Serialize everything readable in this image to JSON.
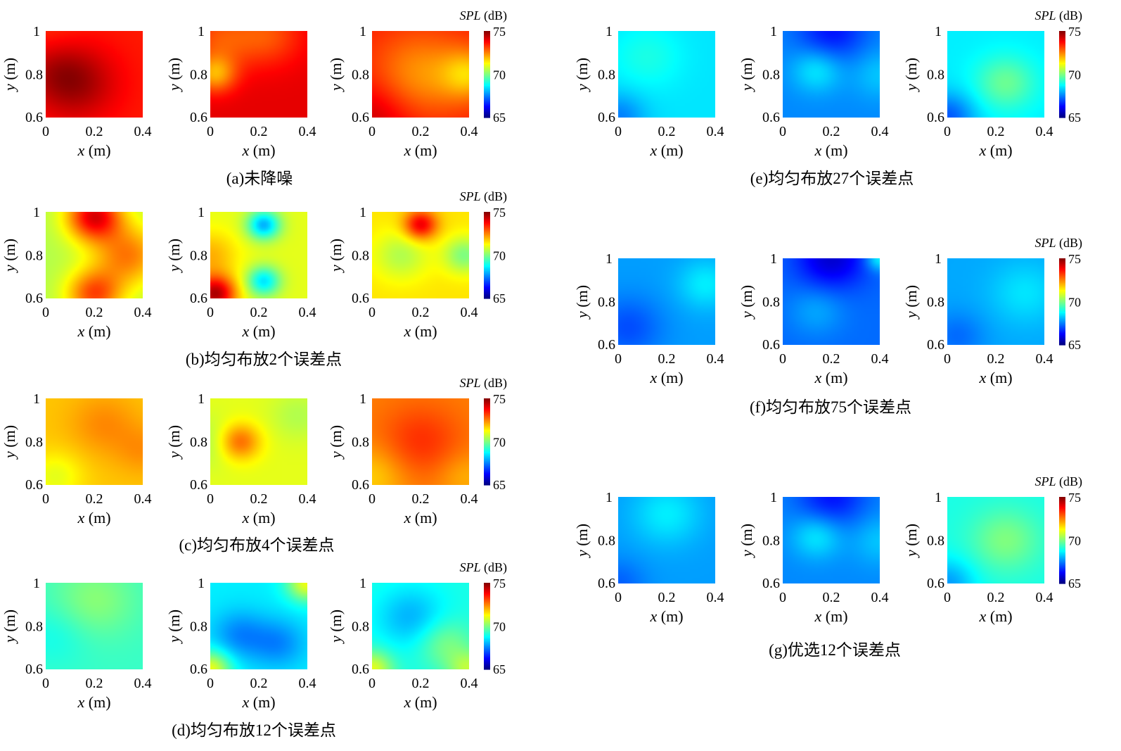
{
  "chart_data": {
    "type": "heatmap",
    "colorscale": "jet",
    "color_range": [
      65,
      75
    ],
    "colorbar": {
      "label_italic": "SPL",
      "label_unit": "(dB)",
      "ticks": [
        "75",
        "70",
        "65"
      ]
    },
    "xlim": [
      0,
      0.4
    ],
    "ylim": [
      0.6,
      1
    ],
    "x_ticks": [
      "0",
      "0.2",
      "0.4"
    ],
    "y_ticks": [
      "1",
      "0.8",
      "0.6"
    ],
    "xlabel": {
      "var": "x",
      "unit": "(m)"
    },
    "ylabel": {
      "var": "y",
      "unit": "(m)"
    },
    "groups": [
      {
        "caption": "(a)未降噪",
        "panels": [
          {
            "base": 73.5,
            "blobs": [
              [
                0.3,
                0.6,
                1.2,
                0.3
              ],
              [
                0.05,
                0.4,
                0.5,
                0.25
              ],
              [
                0.05,
                0.05,
                -0.3,
                0.25
              ]
            ]
          },
          {
            "base": 74.0,
            "blobs": [
              [
                0.05,
                0.5,
                -1.8,
                0.15
              ],
              [
                0.1,
                0.1,
                -1.0,
                0.25
              ],
              [
                0.6,
                0.05,
                -1.0,
                0.25
              ]
            ]
          },
          {
            "base": 73.5,
            "blobs": [
              [
                0.5,
                0.5,
                -1.2,
                0.35
              ],
              [
                1.0,
                0.5,
                -1.5,
                0.2
              ],
              [
                0.0,
                1.0,
                0.8,
                0.3
              ]
            ]
          }
        ]
      },
      {
        "caption": "(b)均匀布放2个误差点",
        "panels": [
          {
            "base": 70.5,
            "blobs": [
              [
                0.5,
                0.05,
                3.5,
                0.2
              ],
              [
                0.5,
                0.95,
                2.5,
                0.2
              ],
              [
                0.85,
                0.5,
                2.0,
                0.25
              ]
            ]
          },
          {
            "base": 71.0,
            "blobs": [
              [
                0.55,
                0.15,
                -3.0,
                0.12
              ],
              [
                0.55,
                0.8,
                -2.5,
                0.12
              ],
              [
                0.05,
                0.95,
                3.5,
                0.15
              ],
              [
                0.0,
                0.5,
                1.0,
                0.2
              ]
            ]
          },
          {
            "base": 71.5,
            "blobs": [
              [
                0.5,
                0.15,
                2.5,
                0.12
              ],
              [
                0.95,
                0.5,
                -1.5,
                0.15
              ],
              [
                0.3,
                0.5,
                -1.0,
                0.2
              ]
            ]
          }
        ]
      },
      {
        "caption": "(c)均匀布放4个误差点",
        "panels": [
          {
            "base": 71.8,
            "blobs": [
              [
                0.6,
                0.3,
                0.6,
                0.25
              ],
              [
                1.0,
                0.6,
                0.5,
                0.2
              ],
              [
                0.1,
                0.9,
                -0.8,
                0.2
              ]
            ]
          },
          {
            "base": 71.0,
            "blobs": [
              [
                0.3,
                0.5,
                1.8,
                0.15
              ],
              [
                0.0,
                0.5,
                -0.6,
                0.2
              ],
              [
                0.9,
                0.2,
                -0.5,
                0.2
              ]
            ]
          },
          {
            "base": 72.5,
            "blobs": [
              [
                0.5,
                0.5,
                0.8,
                0.3
              ],
              [
                0.0,
                0.9,
                -0.8,
                0.25
              ],
              [
                0.95,
                0.9,
                -0.5,
                0.2
              ]
            ]
          }
        ]
      },
      {
        "caption": "(d)均匀布放12个误差点",
        "panels": [
          {
            "base": 69.3,
            "blobs": [
              [
                0.5,
                0.2,
                0.8,
                0.3
              ],
              [
                0.1,
                0.6,
                -0.4,
                0.25
              ]
            ]
          },
          {
            "base": 68.6,
            "blobs": [
              [
                0.3,
                0.6,
                -1.0,
                0.2
              ],
              [
                0.7,
                0.7,
                -1.0,
                0.2
              ],
              [
                0.0,
                1.0,
                2.5,
                0.15
              ],
              [
                1.0,
                0.0,
                2.5,
                0.15
              ]
            ]
          },
          {
            "base": 69.0,
            "blobs": [
              [
                0.4,
                0.4,
                -1.0,
                0.25
              ],
              [
                0.75,
                0.7,
                1.0,
                0.2
              ],
              [
                0.0,
                1.0,
                2.0,
                0.15
              ],
              [
                1.0,
                1.0,
                1.5,
                0.15
              ]
            ]
          }
        ]
      },
      {
        "caption": "(e)均匀布放27个误差点",
        "panels": [
          {
            "base": 68.5,
            "blobs": [
              [
                0.3,
                0.3,
                0.5,
                0.25
              ],
              [
                0.0,
                1.0,
                -1.0,
                0.2
              ]
            ]
          },
          {
            "base": 67.6,
            "blobs": [
              [
                0.35,
                0.45,
                1.0,
                0.18
              ],
              [
                0.5,
                0.0,
                -1.2,
                0.25
              ],
              [
                1.0,
                0.5,
                0.6,
                0.2
              ]
            ]
          },
          {
            "base": 68.6,
            "blobs": [
              [
                0.6,
                0.6,
                1.2,
                0.22
              ],
              [
                0.0,
                1.0,
                -1.5,
                0.2
              ]
            ]
          }
        ]
      },
      {
        "caption": "(f)均匀布放75个误差点",
        "panels": [
          {
            "base": 67.8,
            "blobs": [
              [
                0.9,
                0.3,
                0.8,
                0.2
              ],
              [
                0.1,
                0.8,
                -0.8,
                0.25
              ]
            ]
          },
          {
            "base": 67.3,
            "blobs": [
              [
                0.5,
                0.0,
                -1.5,
                0.25
              ],
              [
                0.35,
                0.6,
                0.6,
                0.2
              ],
              [
                1.0,
                0.0,
                1.5,
                0.1
              ]
            ]
          },
          {
            "base": 67.9,
            "blobs": [
              [
                0.8,
                0.4,
                0.6,
                0.25
              ],
              [
                0.1,
                0.9,
                -0.6,
                0.2
              ]
            ]
          }
        ]
      },
      {
        "caption": "(g)优选12个误差点",
        "panels": [
          {
            "base": 67.8,
            "blobs": [
              [
                0.5,
                0.2,
                0.8,
                0.25
              ],
              [
                0.0,
                1.0,
                -0.6,
                0.2
              ]
            ]
          },
          {
            "base": 67.6,
            "blobs": [
              [
                0.35,
                0.45,
                1.0,
                0.18
              ],
              [
                0.5,
                0.0,
                -1.2,
                0.25
              ],
              [
                1.0,
                0.5,
                0.6,
                0.2
              ]
            ]
          },
          {
            "base": 69.0,
            "blobs": [
              [
                0.6,
                0.5,
                1.0,
                0.25
              ],
              [
                0.0,
                1.0,
                -1.2,
                0.2
              ]
            ]
          }
        ]
      }
    ]
  }
}
